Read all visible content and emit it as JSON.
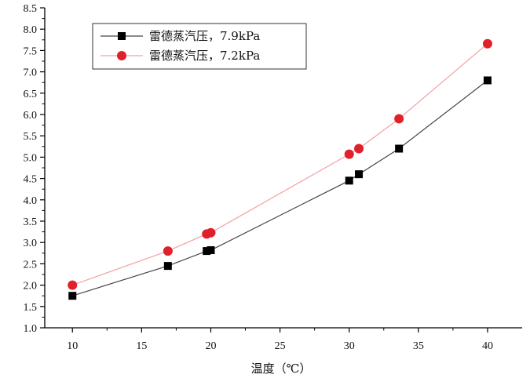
{
  "chart_data": {
    "type": "line",
    "title": "",
    "xlabel": "温度（℃）",
    "ylabel": "",
    "xlim": [
      8,
      42.5
    ],
    "ylim": [
      1.0,
      8.5
    ],
    "xticks": [
      10,
      15,
      20,
      25,
      30,
      35,
      40
    ],
    "yticks": [
      1.0,
      1.5,
      2.0,
      2.5,
      3.0,
      3.5,
      4.0,
      4.5,
      5.0,
      5.5,
      6.0,
      6.5,
      7.0,
      7.5,
      8.0,
      8.5
    ],
    "grid": false,
    "legend_position": "top-left",
    "series": [
      {
        "name": "雷德蒸汽压，7.9kPa",
        "marker": "square",
        "color": "#000000",
        "x": [
          10,
          16.9,
          19.7,
          20,
          30,
          30.7,
          33.6,
          40
        ],
        "y": [
          1.75,
          2.45,
          2.8,
          2.82,
          4.45,
          4.6,
          5.2,
          6.8
        ]
      },
      {
        "name": "雷德蒸汽压，7.2kPa",
        "marker": "circle",
        "color": "#e0202a",
        "x": [
          10,
          16.9,
          19.7,
          20,
          30,
          30.7,
          33.6,
          40
        ],
        "y": [
          2.0,
          2.8,
          3.2,
          3.23,
          5.07,
          5.2,
          5.9,
          7.66
        ]
      }
    ]
  }
}
